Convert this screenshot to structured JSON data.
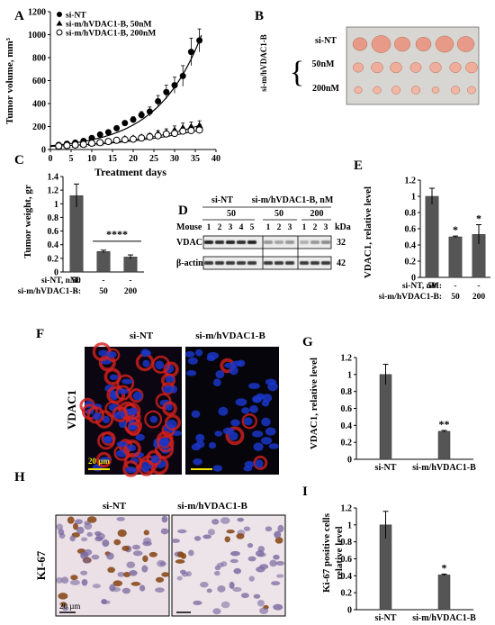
{
  "panels": {
    "A": "A",
    "B": "B",
    "C": "C",
    "D": "D",
    "E": "E",
    "F": "F",
    "G": "G",
    "H": "H",
    "I": "I"
  },
  "colors": {
    "bar": "#555555",
    "axis": "#000000",
    "tumor": "#e8a08f",
    "if_red": "#d2201f",
    "if_blue": "#1a36c8",
    "ihc_bg": "#e9dfe6",
    "ihc_nuc": "#7b6aa0",
    "ihc_brown": "#8a4a1c",
    "scale_bar": "#f2e200"
  },
  "blot": {
    "header_groups": [
      "si-NT",
      "si-m/hVDAC1-B, nM"
    ],
    "doses": [
      "50",
      "50",
      "200"
    ],
    "mouse_label": "Mouse",
    "lane_numbers": [
      "1",
      "2",
      "3",
      "4",
      "5",
      "1",
      "2",
      "3",
      "1",
      "2",
      "3"
    ],
    "kda_label": "kDa",
    "bands": [
      {
        "name": "VDAC1",
        "kda": "32"
      },
      {
        "name": "β-actin",
        "kda": "42"
      }
    ]
  },
  "photo_B": {
    "side_label": "si-m/hVDAC1-B",
    "rows": [
      "si-NT",
      "50nM",
      "200nM"
    ]
  },
  "image_F": {
    "condition_labels": [
      "si-NT",
      "si-m/hVDAC1-B"
    ],
    "stain_label": "VDAC1",
    "scale_label": "20 µm"
  },
  "image_H": {
    "condition_labels": [
      "si-NT",
      "si-m/hVDAC1-B"
    ],
    "stain_label": "KI-67",
    "scale_label": "20 µm"
  },
  "chart_data": [
    {
      "panel": "A",
      "type": "scatter",
      "xlabel": "Treatment days",
      "ylabel": "Tumor volume, mm³",
      "xlim": [
        0,
        40
      ],
      "ylim": [
        0,
        1200
      ],
      "xticks": [
        0,
        5,
        10,
        15,
        20,
        25,
        30,
        35,
        40
      ],
      "yticks": [
        0,
        200,
        400,
        600,
        800,
        1000,
        1200
      ],
      "legend_position": "top-left",
      "series": [
        {
          "name": "si-NT",
          "marker": "filled-circle",
          "trend": "exponential",
          "x": [
            2,
            4,
            6,
            8,
            10,
            12,
            14,
            16,
            18,
            20,
            22,
            24,
            26,
            28,
            30,
            32,
            34,
            36
          ],
          "y": [
            40,
            50,
            60,
            75,
            100,
            130,
            150,
            185,
            230,
            260,
            300,
            330,
            420,
            500,
            560,
            640,
            850,
            950
          ],
          "err": [
            5,
            5,
            6,
            8,
            10,
            12,
            15,
            18,
            20,
            25,
            30,
            40,
            50,
            60,
            70,
            90,
            120,
            100
          ]
        },
        {
          "name": "si-m/hVDAC1-B, 50nM",
          "marker": "filled-triangle",
          "x": [
            2,
            4,
            6,
            8,
            10,
            12,
            14,
            16,
            18,
            20,
            22,
            24,
            26,
            28,
            30,
            32,
            34,
            36
          ],
          "y": [
            30,
            35,
            40,
            45,
            55,
            60,
            70,
            80,
            95,
            100,
            110,
            120,
            140,
            150,
            170,
            190,
            200,
            210
          ],
          "err": [
            4,
            4,
            5,
            5,
            6,
            8,
            10,
            10,
            15,
            15,
            15,
            20,
            25,
            30,
            35,
            40,
            40,
            40
          ]
        },
        {
          "name": "si-m/hVDAC1-B, 200nM",
          "marker": "open-circle",
          "x": [
            2,
            4,
            6,
            8,
            10,
            12,
            14,
            16,
            18,
            20,
            22,
            24,
            26,
            28,
            30,
            32,
            34,
            36
          ],
          "y": [
            30,
            35,
            40,
            45,
            55,
            60,
            70,
            80,
            85,
            90,
            100,
            110,
            120,
            135,
            140,
            160,
            165,
            170
          ],
          "err": [
            4,
            4,
            5,
            5,
            6,
            8,
            10,
            10,
            12,
            15,
            15,
            15,
            20,
            25,
            25,
            30,
            30,
            30
          ]
        }
      ]
    },
    {
      "panel": "C",
      "type": "bar",
      "ylabel": "Tumor weight, gr",
      "ylim": [
        0,
        1.4
      ],
      "yticks": [
        "0",
        "0.2",
        "0.4",
        "0.6",
        "0.8",
        "1",
        "1.2",
        "1.4"
      ],
      "values": [
        1.12,
        0.3,
        0.22
      ],
      "errors": [
        0.17,
        0.02,
        0.03
      ],
      "condition_rows": [
        {
          "label": "si-NT, nM:",
          "cells": [
            "50",
            "-",
            "-"
          ]
        },
        {
          "label": "si-m/hVDAC1-B:",
          "cells": [
            "-",
            "50",
            "200"
          ]
        }
      ],
      "annotations": [
        "****"
      ]
    },
    {
      "panel": "E",
      "type": "bar",
      "ylabel": "VDAC1, relative level",
      "ylim": [
        0,
        1.2
      ],
      "yticks": [
        "0",
        "0.2",
        "0.4",
        "0.6",
        "0.8",
        "1",
        "1.2"
      ],
      "values": [
        1.0,
        0.5,
        0.53
      ],
      "errors": [
        0.1,
        0.01,
        0.12
      ],
      "condition_rows": [
        {
          "label": "si-NT, nM:",
          "cells": [
            "50",
            "-",
            "-"
          ]
        },
        {
          "label": "si-m/hVDAC1-B:",
          "cells": [
            "-",
            "50",
            "200"
          ]
        }
      ],
      "annotations": [
        "",
        "*",
        "*"
      ]
    },
    {
      "panel": "G",
      "type": "bar",
      "ylabel": "VDAC1, relative level",
      "ylim": [
        0,
        1.2
      ],
      "yticks": [
        "0",
        "0.2",
        "0.4",
        "0.6",
        "0.8",
        "1",
        "1.2"
      ],
      "categories": [
        "si-NT",
        "si-m/hVDAC1-B"
      ],
      "values": [
        1.0,
        0.33
      ],
      "errors": [
        0.12,
        0.01
      ],
      "annotations": [
        "",
        "**"
      ]
    },
    {
      "panel": "I",
      "type": "bar",
      "ylabel": "Ki-67 positive cells relative level",
      "ylabel_lines": [
        "Ki-67 positive cells",
        "relative level"
      ],
      "ylim": [
        0,
        1.2
      ],
      "yticks": [
        "0",
        "0.2",
        "0.4",
        "0.6",
        "0.8",
        "1",
        "1.2"
      ],
      "categories": [
        "si-NT",
        "si-m/hVDAC1-B"
      ],
      "values": [
        1.0,
        0.41
      ],
      "errors": [
        0.16,
        0.01
      ],
      "annotations": [
        "",
        "*"
      ]
    }
  ]
}
